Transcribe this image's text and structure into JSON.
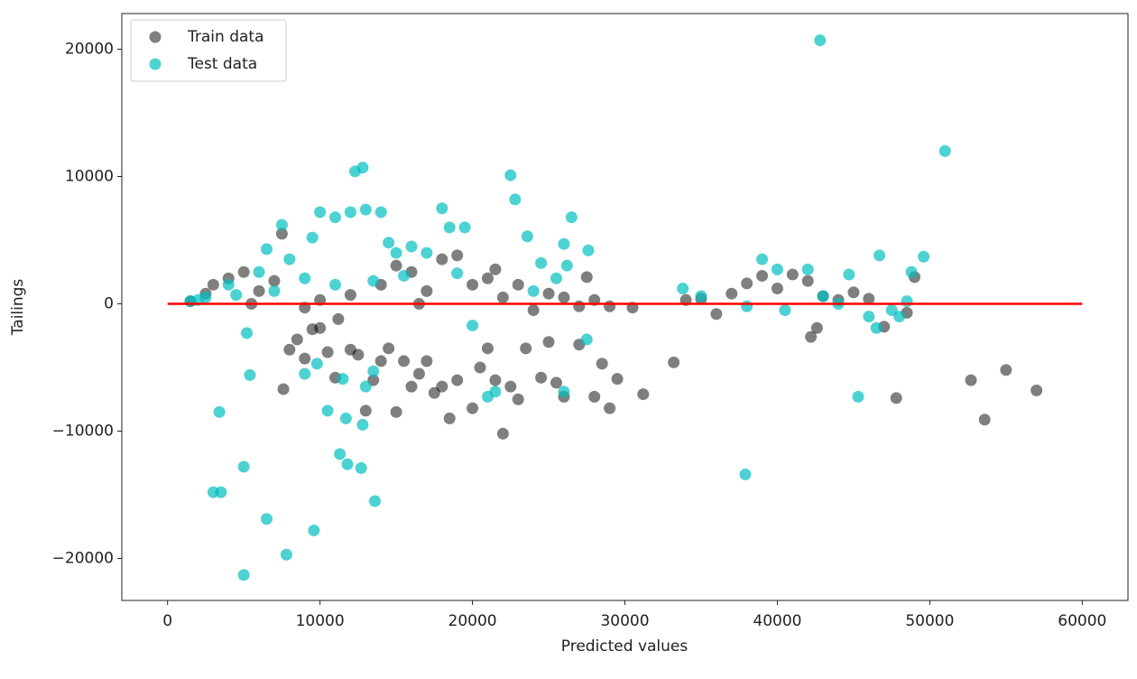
{
  "chart_data": {
    "type": "scatter",
    "x_label": "Predicted values",
    "y_label": "Tailings",
    "xlim": [
      -3000,
      63000
    ],
    "ylim": [
      -23300,
      22800
    ],
    "xticks": [
      0,
      10000,
      20000,
      30000,
      40000,
      50000,
      60000
    ],
    "yticks": [
      {
        "value": -20000,
        "label": "−20000"
      },
      {
        "value": -10000,
        "label": "−10000"
      },
      0,
      10000,
      20000
    ],
    "legend": "upper left",
    "reference_line": {
      "x": [
        0,
        60000
      ],
      "y": [
        0,
        0
      ],
      "color": "#ff0000"
    },
    "series": [
      {
        "name": "Train data",
        "color": "#000000",
        "x": [
          1500,
          2500,
          3000,
          4000,
          5000,
          6000,
          7000,
          7500,
          7600,
          8000,
          8500,
          9000,
          9500,
          10000,
          10500,
          11000,
          11200,
          12000,
          12500,
          13000,
          13500,
          14000,
          14500,
          15000,
          15500,
          16000,
          16500,
          17000,
          17500,
          18000,
          18500,
          19000,
          20000,
          20500,
          21000,
          21500,
          22000,
          22500,
          23000,
          23500,
          24500,
          25000,
          25500,
          26000,
          27000,
          28000,
          28500,
          29000,
          29500,
          31200,
          33200,
          15000,
          16000,
          17000,
          18000,
          19000,
          20000,
          21000,
          21500,
          22000,
          23000,
          24000,
          25000,
          26000,
          27000,
          27500,
          28000,
          29000,
          30500,
          34000,
          35000,
          36000,
          37000,
          38000,
          39000,
          40000,
          41000,
          42000,
          42200,
          42600,
          43000,
          44000,
          45000,
          46000,
          47000,
          47800,
          48500,
          49000,
          52700,
          53600,
          55000,
          57000,
          5500,
          10000,
          12000,
          14000,
          16500,
          9000
        ],
        "y": [
          200,
          800,
          1500,
          2000,
          2500,
          1000,
          1800,
          5500,
          -6700,
          -3600,
          -2800,
          -4300,
          -2000,
          -1900,
          -3800,
          -5800,
          -1200,
          -3600,
          -4000,
          -8400,
          -6000,
          -4500,
          -3500,
          -8500,
          -4500,
          -6500,
          -5500,
          -4500,
          -7000,
          -6500,
          -9000,
          -6000,
          -8200,
          -5000,
          -3500,
          -6000,
          -10200,
          -6500,
          -7500,
          -3500,
          -5800,
          -3000,
          -6200,
          -7300,
          -3200,
          -7300,
          -4700,
          -8200,
          -5900,
          -7100,
          -4600,
          3000,
          2500,
          1000,
          3500,
          3800,
          1500,
          2000,
          2700,
          500,
          1500,
          -500,
          800,
          500,
          -200,
          2100,
          300,
          -200,
          -300,
          300,
          400,
          -800,
          800,
          1600,
          2200,
          1200,
          2300,
          1800,
          -2600,
          -1900,
          600,
          300,
          900,
          400,
          -1800,
          -7400,
          -700,
          2100,
          -6000,
          -9100,
          -5200,
          -6800,
          0,
          300,
          700,
          1500,
          0,
          -300
        ]
      },
      {
        "name": "Test data",
        "color": "#00bfbf",
        "x": [
          1500,
          2500,
          3000,
          3500,
          3400,
          4000,
          5000,
          5000,
          5200,
          5400,
          6000,
          6500,
          6500,
          7500,
          7800,
          8000,
          9000,
          9500,
          9800,
          9600,
          10000,
          10500,
          11000,
          11500,
          11300,
          11800,
          11700,
          12000,
          12300,
          12800,
          12700,
          12800,
          13000,
          13500,
          13600,
          13000,
          14000,
          14500,
          15000,
          16000,
          17000,
          18000,
          18500,
          19000,
          19500,
          20000,
          21000,
          21500,
          22500,
          22800,
          23600,
          24000,
          24500,
          25500,
          26000,
          26200,
          26500,
          26000,
          27500,
          27600,
          33800,
          35000,
          38000,
          37900,
          39000,
          40000,
          40500,
          42000,
          42800,
          43000,
          44000,
          44700,
          45300,
          46000,
          46500,
          46700,
          47500,
          48000,
          48500,
          48800,
          49600,
          51000,
          2000,
          4500,
          7000,
          9000,
          11000,
          13500,
          15500
        ],
        "y": [
          200,
          500,
          -14800,
          -14800,
          -8500,
          1500,
          -12800,
          -21300,
          -2300,
          -5600,
          2500,
          4300,
          -16900,
          6200,
          -19700,
          3500,
          -5500,
          5200,
          -4700,
          -17800,
          7200,
          -8400,
          6800,
          -5900,
          -11800,
          -12600,
          -9000,
          7200,
          10400,
          10700,
          -12900,
          -9500,
          -6500,
          -5300,
          -15500,
          7400,
          7200,
          4800,
          4000,
          4500,
          4000,
          7500,
          6000,
          2400,
          6000,
          -1700,
          -7300,
          -6900,
          10100,
          8200,
          5300,
          1000,
          3200,
          2000,
          4700,
          3000,
          6800,
          -6900,
          -2800,
          4200,
          1200,
          600,
          -200,
          -13400,
          3500,
          2700,
          -500,
          2700,
          20700,
          600,
          0,
          2300,
          -7300,
          -1000,
          -1900,
          3800,
          -500,
          -1000,
          200,
          2500,
          3700,
          12000,
          300,
          700,
          1000,
          2000,
          1500,
          1800,
          2200
        ]
      }
    ]
  }
}
